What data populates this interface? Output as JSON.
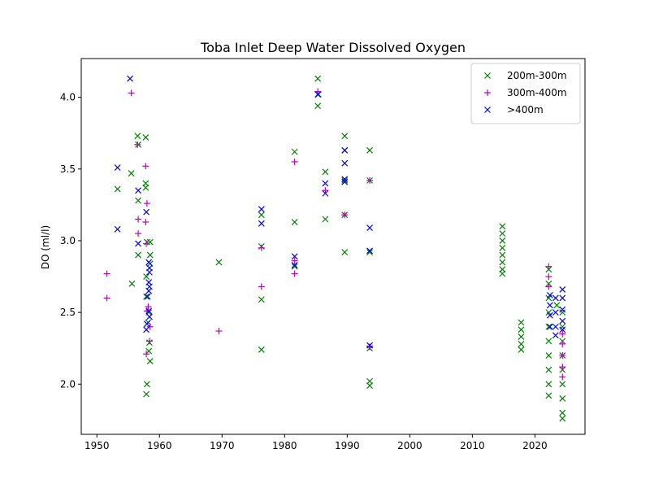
{
  "chart_data": {
    "type": "scatter",
    "title": "Toba Inlet Deep Water Dissolved Oxygen",
    "xlabel": "",
    "ylabel": "DO (ml/l)",
    "xlim": [
      1947.5,
      2028
    ],
    "ylim": [
      1.65,
      4.27
    ],
    "xticks": [
      1950,
      1960,
      1970,
      1980,
      1990,
      2000,
      2010,
      2020
    ],
    "yticks": [
      2.0,
      2.5,
      3.0,
      3.5,
      4.0
    ],
    "ytick_labels": [
      "2.0",
      "2.5",
      "3.0",
      "3.5",
      "4.0"
    ],
    "grid": false,
    "legend_position": "top-right",
    "series": [
      {
        "name": "200m-300m",
        "marker": "x",
        "color": "#008000",
        "points": [
          [
            1953.3,
            3.36
          ],
          [
            1955.5,
            3.47
          ],
          [
            1955.6,
            2.7
          ],
          [
            1956.5,
            3.73
          ],
          [
            1956.6,
            3.67
          ],
          [
            1956.6,
            3.28
          ],
          [
            1956.6,
            2.9
          ],
          [
            1957.8,
            3.72
          ],
          [
            1957.8,
            3.4
          ],
          [
            1957.8,
            3.37
          ],
          [
            1957.9,
            2.75
          ],
          [
            1957.9,
            2.61
          ],
          [
            1958.0,
            2.99
          ],
          [
            1958.0,
            2.0
          ],
          [
            1957.9,
            1.93
          ],
          [
            1958.2,
            2.43
          ],
          [
            1958.3,
            2.23
          ],
          [
            1958.5,
            2.99
          ],
          [
            1958.5,
            2.9
          ],
          [
            1958.5,
            2.84
          ],
          [
            1958.4,
            2.29
          ],
          [
            1958.5,
            2.16
          ],
          [
            1958.3,
            2.5
          ],
          [
            1969.5,
            2.85
          ],
          [
            1976.3,
            3.18
          ],
          [
            1976.3,
            2.96
          ],
          [
            1976.3,
            2.59
          ],
          [
            1976.3,
            2.24
          ],
          [
            1981.6,
            3.62
          ],
          [
            1981.6,
            3.13
          ],
          [
            1981.6,
            2.82
          ],
          [
            1985.3,
            4.13
          ],
          [
            1985.3,
            3.94
          ],
          [
            1985.4,
            4.02
          ],
          [
            1986.5,
            3.48
          ],
          [
            1986.5,
            3.15
          ],
          [
            1989.6,
            3.73
          ],
          [
            1989.6,
            3.63
          ],
          [
            1989.6,
            3.42
          ],
          [
            1989.6,
            3.18
          ],
          [
            1989.6,
            2.92
          ],
          [
            1993.6,
            3.63
          ],
          [
            1993.6,
            3.42
          ],
          [
            1993.6,
            2.92
          ],
          [
            1993.6,
            2.25
          ],
          [
            1993.6,
            2.02
          ],
          [
            1993.6,
            1.99
          ],
          [
            2014.8,
            3.1
          ],
          [
            2014.8,
            3.05
          ],
          [
            2014.8,
            3.0
          ],
          [
            2014.8,
            2.95
          ],
          [
            2014.8,
            2.9
          ],
          [
            2014.8,
            2.85
          ],
          [
            2014.8,
            2.8
          ],
          [
            2014.8,
            2.77
          ],
          [
            2017.8,
            2.43
          ],
          [
            2017.8,
            2.38
          ],
          [
            2017.8,
            2.33
          ],
          [
            2017.8,
            2.28
          ],
          [
            2017.8,
            2.24
          ],
          [
            2022.2,
            2.8
          ],
          [
            2022.2,
            2.7
          ],
          [
            2022.2,
            2.6
          ],
          [
            2022.2,
            2.5
          ],
          [
            2022.2,
            2.4
          ],
          [
            2022.2,
            2.3
          ],
          [
            2022.2,
            2.2
          ],
          [
            2022.2,
            2.1
          ],
          [
            2022.2,
            2.0
          ],
          [
            2022.2,
            1.92
          ],
          [
            2023.5,
            2.55
          ],
          [
            2024.4,
            2.5
          ],
          [
            2024.4,
            2.4
          ],
          [
            2024.4,
            2.3
          ],
          [
            2024.4,
            2.2
          ],
          [
            2024.4,
            2.1
          ],
          [
            2024.4,
            2.0
          ],
          [
            2024.4,
            1.9
          ],
          [
            2024.4,
            1.8
          ],
          [
            2024.4,
            1.76
          ]
        ]
      },
      {
        "name": "300m-400m",
        "marker": "+",
        "color": "#bf00bf",
        "points": [
          [
            1951.6,
            2.77
          ],
          [
            1951.6,
            2.6
          ],
          [
            1955.5,
            4.03
          ],
          [
            1956.5,
            3.67
          ],
          [
            1956.6,
            3.15
          ],
          [
            1956.6,
            3.05
          ],
          [
            1957.8,
            3.52
          ],
          [
            1958.0,
            3.26
          ],
          [
            1957.8,
            3.13
          ],
          [
            1957.9,
            2.98
          ],
          [
            1958.0,
            2.51
          ],
          [
            1958.2,
            2.54
          ],
          [
            1958.5,
            2.4
          ],
          [
            1958.4,
            2.3
          ],
          [
            1957.9,
            2.21
          ],
          [
            1969.5,
            2.37
          ],
          [
            1976.3,
            2.95
          ],
          [
            1976.3,
            2.68
          ],
          [
            1981.6,
            3.55
          ],
          [
            1981.6,
            2.86
          ],
          [
            1981.6,
            2.77
          ],
          [
            1985.3,
            4.04
          ],
          [
            1986.5,
            3.35
          ],
          [
            1989.6,
            3.18
          ],
          [
            1993.6,
            3.42
          ],
          [
            1993.6,
            2.26
          ],
          [
            2022.2,
            2.82
          ],
          [
            2022.2,
            2.75
          ],
          [
            2022.2,
            2.68
          ],
          [
            2024.4,
            2.35
          ],
          [
            2024.4,
            2.28
          ],
          [
            2024.4,
            2.2
          ],
          [
            2024.4,
            2.12
          ],
          [
            2024.4,
            2.05
          ]
        ]
      },
      {
        "name": ">400m",
        "marker": "x",
        "color": "#0000ff",
        "points": [
          [
            1953.3,
            3.51
          ],
          [
            1953.3,
            3.08
          ],
          [
            1955.3,
            4.13
          ],
          [
            1956.6,
            3.35
          ],
          [
            1956.6,
            2.98
          ],
          [
            1957.9,
            3.2
          ],
          [
            1958.3,
            2.85
          ],
          [
            1958.4,
            2.81
          ],
          [
            1958.4,
            2.78
          ],
          [
            1958.3,
            2.71
          ],
          [
            1958.4,
            2.68
          ],
          [
            1958.3,
            2.65
          ],
          [
            1958.1,
            2.61
          ],
          [
            1958.3,
            2.51
          ],
          [
            1958.4,
            2.47
          ],
          [
            1958.0,
            2.42
          ],
          [
            1957.9,
            2.38
          ],
          [
            1976.3,
            3.22
          ],
          [
            1976.3,
            3.12
          ],
          [
            1981.6,
            2.89
          ],
          [
            1981.6,
            2.83
          ],
          [
            1985.3,
            4.02
          ],
          [
            1986.5,
            3.4
          ],
          [
            1986.5,
            3.33
          ],
          [
            1989.6,
            3.63
          ],
          [
            1989.6,
            3.54
          ],
          [
            1989.6,
            3.43
          ],
          [
            1989.6,
            3.41
          ],
          [
            1993.6,
            3.09
          ],
          [
            1993.6,
            2.93
          ],
          [
            1993.6,
            2.27
          ],
          [
            2022.4,
            2.62
          ],
          [
            2022.4,
            2.55
          ],
          [
            2022.4,
            2.48
          ],
          [
            2022.4,
            2.4
          ],
          [
            2023.3,
            2.6
          ],
          [
            2023.3,
            2.5
          ],
          [
            2023.3,
            2.4
          ],
          [
            2023.3,
            2.34
          ],
          [
            2024.4,
            2.66
          ],
          [
            2024.4,
            2.6
          ],
          [
            2024.4,
            2.52
          ],
          [
            2024.4,
            2.44
          ],
          [
            2024.4,
            2.38
          ]
        ]
      }
    ]
  }
}
